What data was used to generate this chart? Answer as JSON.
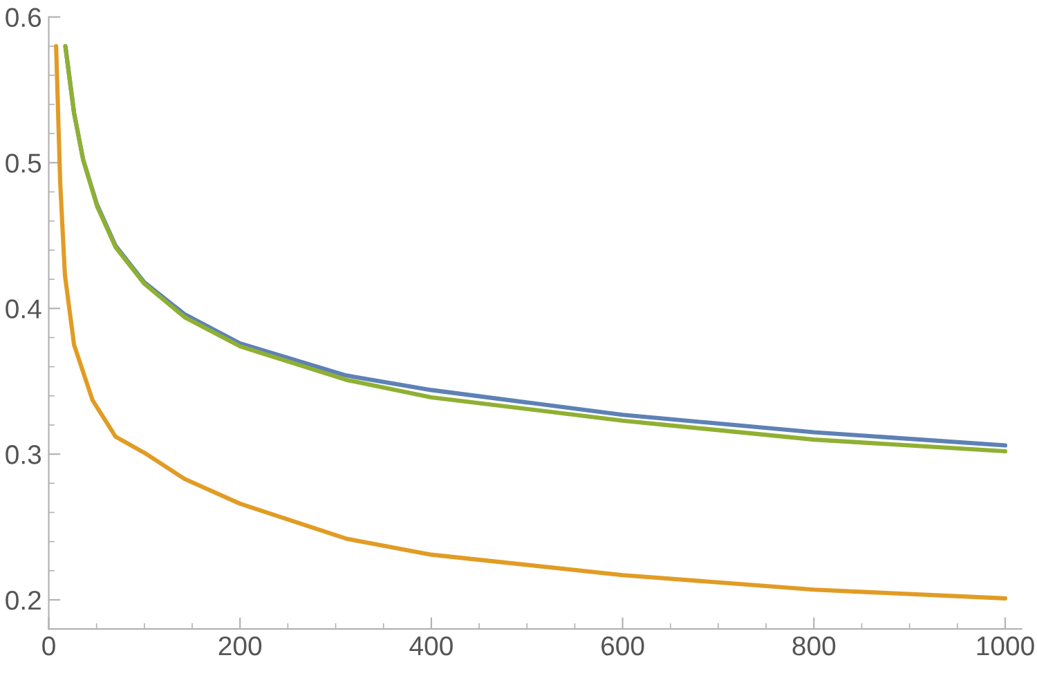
{
  "chart_data": {
    "type": "line",
    "xlim": [
      0,
      1017
    ],
    "ylim": [
      0.18,
      0.6
    ],
    "xticks": [
      0,
      200,
      400,
      600,
      800,
      1000
    ],
    "yticks": [
      0.2,
      0.3,
      0.4,
      0.5,
      0.6
    ],
    "grid": false,
    "legend": false,
    "marker": "none",
    "line_style": "solid",
    "series": [
      {
        "color": "#5e81b5",
        "x": [
          17.4,
          26.5,
          36,
          50.6,
          69.9,
          99.8,
          142,
          200,
          311,
          400,
          600,
          800,
          1000
        ],
        "values": [
          0.58,
          0.534,
          0.502,
          0.471,
          0.443,
          0.418,
          0.396,
          0.376,
          0.354,
          0.344,
          0.327,
          0.315,
          0.306
        ]
      },
      {
        "color": "#e19c24",
        "x": [
          7.7,
          12,
          16.9,
          26.5,
          45.8,
          69.9,
          99.8,
          142,
          200,
          311,
          400,
          600,
          800,
          1000
        ],
        "values": [
          0.58,
          0.486,
          0.423,
          0.375,
          0.337,
          0.312,
          0.301,
          0.283,
          0.266,
          0.242,
          0.231,
          0.217,
          0.207,
          0.201
        ]
      },
      {
        "color": "#8fb032",
        "x": [
          17.4,
          26.5,
          36,
          50.6,
          69.9,
          99.8,
          142,
          200,
          311,
          400,
          600,
          800,
          1000
        ],
        "values": [
          0.58,
          0.534,
          0.502,
          0.47,
          0.442,
          0.417,
          0.394,
          0.374,
          0.351,
          0.339,
          0.323,
          0.31,
          0.302
        ]
      }
    ]
  }
}
